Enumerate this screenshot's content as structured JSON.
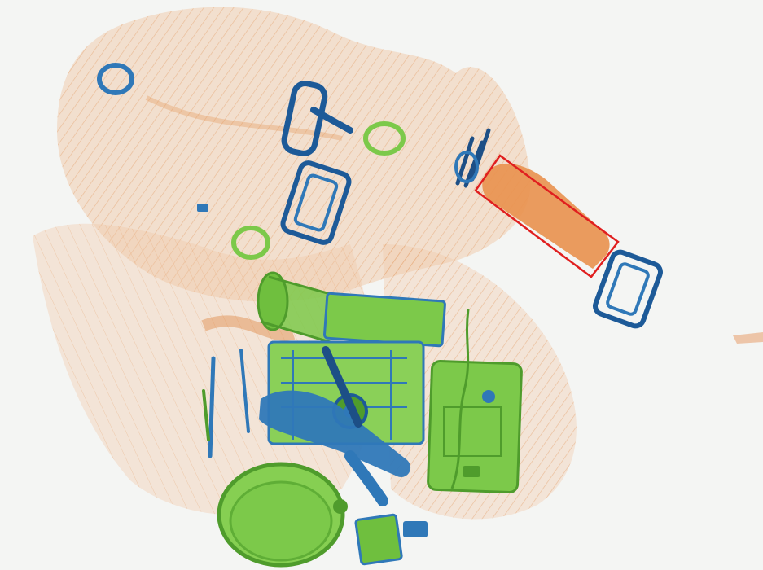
{
  "scan": {
    "colors": {
      "background": "#f4f5f3",
      "organic": "#e59a5c",
      "organic_dark": "#d9823f",
      "metal": "#2f78b8",
      "metal_dark": "#1d4f86",
      "inorganic": "#7cc94a",
      "inorganic_dark": "#4f9c2c",
      "detection_box": "#e01f1f"
    },
    "detections": [
      {
        "label_visible": false,
        "object": "liquid-bottle"
      }
    ]
  }
}
